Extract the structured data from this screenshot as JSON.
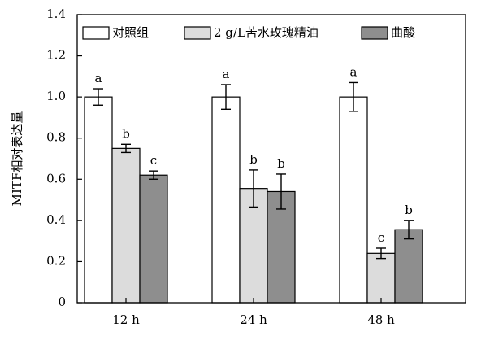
{
  "chart_data": {
    "type": "bar",
    "ylabel": "MITF相对表达量",
    "xlabel": "",
    "ylim": [
      0,
      1.4
    ],
    "yticks": [
      "0",
      "0.2",
      "0.4",
      "0.6",
      "0.8",
      "1.0",
      "1.2",
      "1.4"
    ],
    "categories": [
      "12 h",
      "24 h",
      "48 h"
    ],
    "legend_position": "top",
    "series": [
      {
        "name": "对照组",
        "color": "#ffffff",
        "values": [
          1.0,
          1.0,
          1.0
        ],
        "errors": [
          0.04,
          0.06,
          0.07
        ],
        "letters": [
          "a",
          "a",
          "a"
        ]
      },
      {
        "name": "2 g/L苦水玫瑰精油",
        "color": "#dcdcdc",
        "values": [
          0.75,
          0.555,
          0.24
        ],
        "errors": [
          0.02,
          0.09,
          0.025
        ],
        "letters": [
          "b",
          "b",
          "c"
        ]
      },
      {
        "name": "曲酸",
        "color": "#8e8e8e",
        "values": [
          0.62,
          0.54,
          0.355
        ],
        "errors": [
          0.02,
          0.085,
          0.045
        ],
        "letters": [
          "c",
          "b",
          "b"
        ]
      }
    ]
  }
}
